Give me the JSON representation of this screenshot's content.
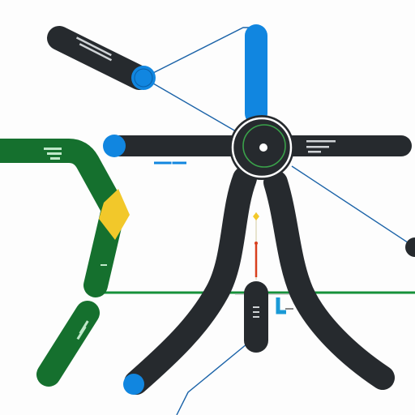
{
  "colors": {
    "dark": "#262a2e",
    "blue": "#1186e0",
    "green": "#15702e",
    "yellow": "#f2c82a",
    "line_blue": "#1b63a8",
    "line_green": "#16913a",
    "red": "#d8401e",
    "hub_ring": "#3aa24a",
    "background": "#fdfdfd"
  },
  "icons": {
    "hub": "hub-ring-icon",
    "endpoint": "endpoint-dot-icon"
  },
  "labels": {
    "upper_left_bar": "",
    "right_bar": "",
    "green_bar": "",
    "lower_green_bar": "",
    "center_pill": "",
    "blue_tag": ""
  }
}
